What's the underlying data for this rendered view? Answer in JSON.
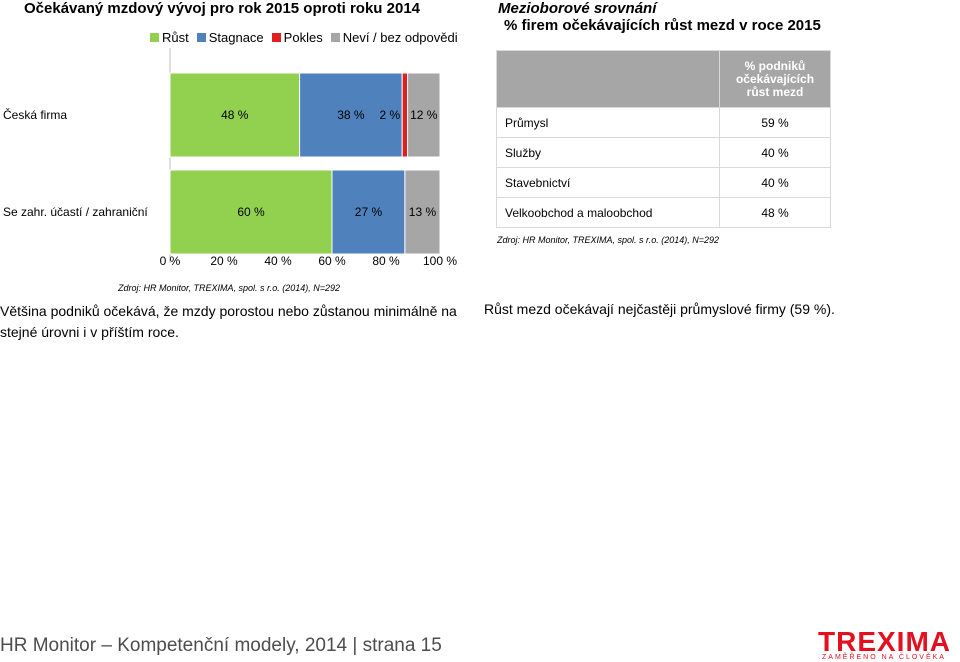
{
  "left": {
    "title": "Očekávaný mzdový vývoj pro rok 2015 oproti roku 2014",
    "source": "Zdroj: HR  Monitor, TREXIMA, spol. s r.o.  (2014), N=292",
    "summary": "Většina podniků očekává, že mzdy porostou nebo zůstanou minimálně na stejné úrovni i v příštím roce."
  },
  "chart_data": {
    "type": "bar",
    "orientation": "horizontal",
    "stacked": true,
    "categories": [
      "Česká firma",
      "Se zahr. účastí / zahraniční"
    ],
    "series": [
      {
        "name": "Růst",
        "color": "#92d050",
        "values": [
          48,
          60
        ],
        "labels": [
          "48 %",
          "60 %"
        ]
      },
      {
        "name": "Stagnace",
        "color": "#4f81bd",
        "values": [
          38,
          27
        ],
        "labels": [
          "38 %",
          "27 %"
        ]
      },
      {
        "name": "Pokles",
        "color": "#e02020",
        "values": [
          2,
          0
        ],
        "labels": [
          "2 %",
          ""
        ]
      },
      {
        "name": "Neví / bez odpovědi",
        "color": "#a6a6a6",
        "values": [
          12,
          13
        ],
        "labels": [
          "12 %",
          "13 %"
        ]
      }
    ],
    "xlim": [
      0,
      100
    ],
    "xticks": [
      "0 %",
      "20 %",
      "40 %",
      "60 %",
      "80 %",
      "100 %"
    ],
    "grid": false,
    "legend": "top"
  },
  "right": {
    "title_line1": "Mezioborové srovnání",
    "title_line2": "% firem očekávajících růst mezd v roce 2015",
    "table": {
      "header": [
        "% podniků",
        "očekávajících",
        "růst mezd"
      ],
      "rows": [
        {
          "sector": "Průmysl",
          "value": "59 %"
        },
        {
          "sector": "Služby",
          "value": "40 %"
        },
        {
          "sector": "Stavebnictví",
          "value": "40 %"
        },
        {
          "sector": "Velkoobchod a maloobchod",
          "value": "48 %"
        }
      ]
    },
    "source": "Zdroj: HR  Monitor, TREXIMA, spol. s r.o.  (2014), N=292",
    "summary": "Růst mezd očekávají nejčastěji průmyslové firmy (59 %)."
  },
  "footer": {
    "text": "HR Monitor – Kompetenční modely, 2014 | strana 15",
    "logo_brand": "TREXIMA",
    "logo_tagline": "ZAMĚŘENO NA ČLOVĚKA"
  }
}
